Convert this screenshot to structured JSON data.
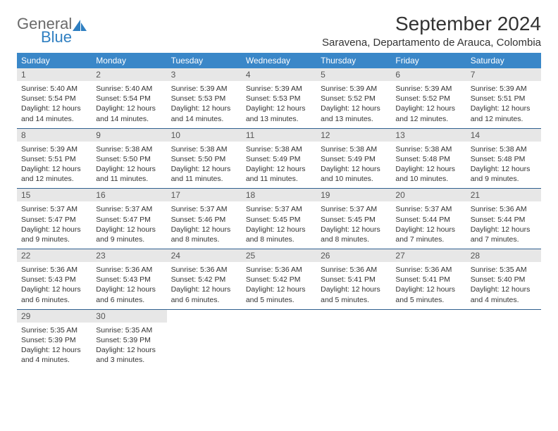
{
  "logo": {
    "word1": "General",
    "word2": "Blue"
  },
  "title": "September 2024",
  "location": "Saravena, Departamento de Arauca, Colombia",
  "colors": {
    "header_bg": "#3a87c8",
    "header_text": "#ffffff",
    "daynum_bg": "#e7e7e7",
    "row_border": "#2f5f8f",
    "logo_gray": "#6a6a6a",
    "logo_blue": "#2f7fc1"
  },
  "day_labels": [
    "Sunday",
    "Monday",
    "Tuesday",
    "Wednesday",
    "Thursday",
    "Friday",
    "Saturday"
  ],
  "weeks": [
    [
      {
        "n": "1",
        "sr": "5:40 AM",
        "ss": "5:54 PM",
        "dl": "12 hours and 14 minutes."
      },
      {
        "n": "2",
        "sr": "5:40 AM",
        "ss": "5:54 PM",
        "dl": "12 hours and 14 minutes."
      },
      {
        "n": "3",
        "sr": "5:39 AM",
        "ss": "5:53 PM",
        "dl": "12 hours and 14 minutes."
      },
      {
        "n": "4",
        "sr": "5:39 AM",
        "ss": "5:53 PM",
        "dl": "12 hours and 13 minutes."
      },
      {
        "n": "5",
        "sr": "5:39 AM",
        "ss": "5:52 PM",
        "dl": "12 hours and 13 minutes."
      },
      {
        "n": "6",
        "sr": "5:39 AM",
        "ss": "5:52 PM",
        "dl": "12 hours and 12 minutes."
      },
      {
        "n": "7",
        "sr": "5:39 AM",
        "ss": "5:51 PM",
        "dl": "12 hours and 12 minutes."
      }
    ],
    [
      {
        "n": "8",
        "sr": "5:39 AM",
        "ss": "5:51 PM",
        "dl": "12 hours and 12 minutes."
      },
      {
        "n": "9",
        "sr": "5:38 AM",
        "ss": "5:50 PM",
        "dl": "12 hours and 11 minutes."
      },
      {
        "n": "10",
        "sr": "5:38 AM",
        "ss": "5:50 PM",
        "dl": "12 hours and 11 minutes."
      },
      {
        "n": "11",
        "sr": "5:38 AM",
        "ss": "5:49 PM",
        "dl": "12 hours and 11 minutes."
      },
      {
        "n": "12",
        "sr": "5:38 AM",
        "ss": "5:49 PM",
        "dl": "12 hours and 10 minutes."
      },
      {
        "n": "13",
        "sr": "5:38 AM",
        "ss": "5:48 PM",
        "dl": "12 hours and 10 minutes."
      },
      {
        "n": "14",
        "sr": "5:38 AM",
        "ss": "5:48 PM",
        "dl": "12 hours and 9 minutes."
      }
    ],
    [
      {
        "n": "15",
        "sr": "5:37 AM",
        "ss": "5:47 PM",
        "dl": "12 hours and 9 minutes."
      },
      {
        "n": "16",
        "sr": "5:37 AM",
        "ss": "5:47 PM",
        "dl": "12 hours and 9 minutes."
      },
      {
        "n": "17",
        "sr": "5:37 AM",
        "ss": "5:46 PM",
        "dl": "12 hours and 8 minutes."
      },
      {
        "n": "18",
        "sr": "5:37 AM",
        "ss": "5:45 PM",
        "dl": "12 hours and 8 minutes."
      },
      {
        "n": "19",
        "sr": "5:37 AM",
        "ss": "5:45 PM",
        "dl": "12 hours and 8 minutes."
      },
      {
        "n": "20",
        "sr": "5:37 AM",
        "ss": "5:44 PM",
        "dl": "12 hours and 7 minutes."
      },
      {
        "n": "21",
        "sr": "5:36 AM",
        "ss": "5:44 PM",
        "dl": "12 hours and 7 minutes."
      }
    ],
    [
      {
        "n": "22",
        "sr": "5:36 AM",
        "ss": "5:43 PM",
        "dl": "12 hours and 6 minutes."
      },
      {
        "n": "23",
        "sr": "5:36 AM",
        "ss": "5:43 PM",
        "dl": "12 hours and 6 minutes."
      },
      {
        "n": "24",
        "sr": "5:36 AM",
        "ss": "5:42 PM",
        "dl": "12 hours and 6 minutes."
      },
      {
        "n": "25",
        "sr": "5:36 AM",
        "ss": "5:42 PM",
        "dl": "12 hours and 5 minutes."
      },
      {
        "n": "26",
        "sr": "5:36 AM",
        "ss": "5:41 PM",
        "dl": "12 hours and 5 minutes."
      },
      {
        "n": "27",
        "sr": "5:36 AM",
        "ss": "5:41 PM",
        "dl": "12 hours and 5 minutes."
      },
      {
        "n": "28",
        "sr": "5:35 AM",
        "ss": "5:40 PM",
        "dl": "12 hours and 4 minutes."
      }
    ],
    [
      {
        "n": "29",
        "sr": "5:35 AM",
        "ss": "5:39 PM",
        "dl": "12 hours and 4 minutes."
      },
      {
        "n": "30",
        "sr": "5:35 AM",
        "ss": "5:39 PM",
        "dl": "12 hours and 3 minutes."
      },
      null,
      null,
      null,
      null,
      null
    ]
  ],
  "labels": {
    "sunrise": "Sunrise: ",
    "sunset": "Sunset: ",
    "daylight": "Daylight: "
  }
}
